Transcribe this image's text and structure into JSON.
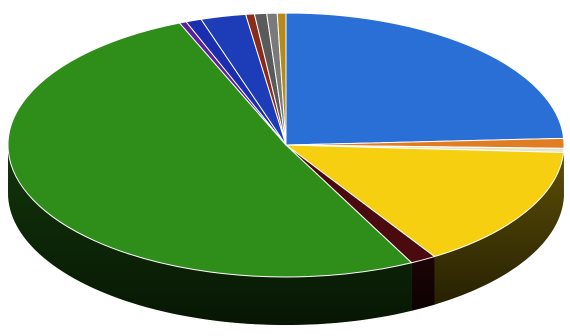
{
  "chart_data": {
    "type": "pie",
    "style": "3d-tilted",
    "legend": "none",
    "grid": false,
    "title": "",
    "slices": [
      {
        "value": 24.0,
        "color": "#2a6fd6"
      },
      {
        "value": 1.2,
        "color": "#e07c22"
      },
      {
        "value": 0.5,
        "color": "#e8e2c8"
      },
      {
        "value": 15.0,
        "color": "#f5cf10"
      },
      {
        "value": 1.5,
        "color": "#4a0a10"
      },
      {
        "value": 50.8,
        "color": "#2f8e1a"
      },
      {
        "value": 0.4,
        "color": "#5b1fa0"
      },
      {
        "value": 0.9,
        "color": "#1b2eb0"
      },
      {
        "value": 2.6,
        "color": "#1d3cb8"
      },
      {
        "value": 0.5,
        "color": "#8a2a18"
      },
      {
        "value": 0.7,
        "color": "#5a5a5a"
      },
      {
        "value": 0.6,
        "color": "#7a7a7a"
      },
      {
        "value": 0.5,
        "color": "#b48a1a"
      }
    ]
  }
}
